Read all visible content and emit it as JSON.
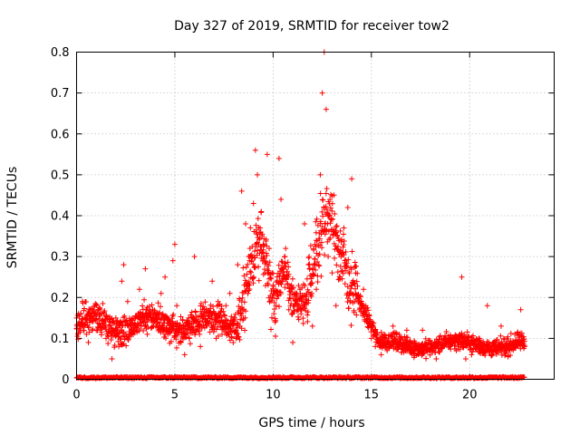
{
  "chart_data": {
    "type": "scatter",
    "title": "Day 327 of 2019, SRMTID for receiver tow2",
    "xlabel": "GPS time / hours",
    "ylabel": "SRMTID / TECUs",
    "xlim": [
      0,
      24.3
    ],
    "ylim": [
      0,
      0.8
    ],
    "xticks": [
      0,
      5,
      10,
      15,
      20
    ],
    "xtick_labels": [
      "0",
      "5",
      "10",
      "15",
      "20"
    ],
    "yticks": [
      0,
      0.1,
      0.2,
      0.3,
      0.4,
      0.5,
      0.6,
      0.7,
      0.8
    ],
    "ytick_labels": [
      "0",
      "0.1",
      "0.2",
      "0.3",
      "0.4",
      "0.5",
      "0.6",
      "0.7",
      "0.8"
    ],
    "grid": true,
    "marker": "plus",
    "color": "#ff0000",
    "x_range_data": [
      0,
      22.8
    ],
    "profile_description_hours": "baseline near 0 to 0.01 across full range; main cluster ~0.1-0.2 until 8h; rise to 0.3-0.55 around 8-10h; second peak up to 0.8 near 12.5-13h; decline after 14h to ~0.05-0.12; isolated point 0.25 at 19.6h",
    "series": [
      {
        "name": "SRMTID",
        "sample_points": [
          {
            "x": 0.0,
            "y": 0.15
          },
          {
            "x": 0.1,
            "y": 0.16
          },
          {
            "x": 0.2,
            "y": 0.13
          },
          {
            "x": 0.3,
            "y": 0.19
          },
          {
            "x": 0.5,
            "y": 0.11
          },
          {
            "x": 0.6,
            "y": 0.09
          },
          {
            "x": 0.8,
            "y": 0.17
          },
          {
            "x": 1.0,
            "y": 0.12
          },
          {
            "x": 1.2,
            "y": 0.13
          },
          {
            "x": 1.5,
            "y": 0.1
          },
          {
            "x": 1.7,
            "y": 0.14
          },
          {
            "x": 1.8,
            "y": 0.05
          },
          {
            "x": 2.0,
            "y": 0.15
          },
          {
            "x": 2.2,
            "y": 0.13
          },
          {
            "x": 2.3,
            "y": 0.24
          },
          {
            "x": 2.4,
            "y": 0.28
          },
          {
            "x": 2.6,
            "y": 0.19
          },
          {
            "x": 2.8,
            "y": 0.12
          },
          {
            "x": 3.0,
            "y": 0.15
          },
          {
            "x": 3.2,
            "y": 0.22
          },
          {
            "x": 3.5,
            "y": 0.27
          },
          {
            "x": 3.6,
            "y": 0.11
          },
          {
            "x": 3.9,
            "y": 0.15
          },
          {
            "x": 4.1,
            "y": 0.14
          },
          {
            "x": 4.3,
            "y": 0.21
          },
          {
            "x": 4.5,
            "y": 0.25
          },
          {
            "x": 4.7,
            "y": 0.12
          },
          {
            "x": 4.9,
            "y": 0.29
          },
          {
            "x": 5.0,
            "y": 0.33
          },
          {
            "x": 5.1,
            "y": 0.18
          },
          {
            "x": 5.3,
            "y": 0.09
          },
          {
            "x": 5.5,
            "y": 0.06
          },
          {
            "x": 5.7,
            "y": 0.15
          },
          {
            "x": 6.0,
            "y": 0.3
          },
          {
            "x": 6.1,
            "y": 0.12
          },
          {
            "x": 6.3,
            "y": 0.08
          },
          {
            "x": 6.6,
            "y": 0.13
          },
          {
            "x": 6.9,
            "y": 0.24
          },
          {
            "x": 7.1,
            "y": 0.1
          },
          {
            "x": 7.4,
            "y": 0.11
          },
          {
            "x": 7.6,
            "y": 0.18
          },
          {
            "x": 7.8,
            "y": 0.21
          },
          {
            "x": 8.0,
            "y": 0.12
          },
          {
            "x": 8.2,
            "y": 0.28
          },
          {
            "x": 8.4,
            "y": 0.46
          },
          {
            "x": 8.6,
            "y": 0.38
          },
          {
            "x": 8.8,
            "y": 0.29
          },
          {
            "x": 9.0,
            "y": 0.43
          },
          {
            "x": 9.1,
            "y": 0.56
          },
          {
            "x": 9.2,
            "y": 0.5
          },
          {
            "x": 9.4,
            "y": 0.41
          },
          {
            "x": 9.5,
            "y": 0.33
          },
          {
            "x": 9.7,
            "y": 0.55
          },
          {
            "x": 9.8,
            "y": 0.32
          },
          {
            "x": 10.0,
            "y": 0.21
          },
          {
            "x": 10.1,
            "y": 0.14
          },
          {
            "x": 10.3,
            "y": 0.54
          },
          {
            "x": 10.4,
            "y": 0.44
          },
          {
            "x": 10.6,
            "y": 0.3
          },
          {
            "x": 10.8,
            "y": 0.17
          },
          {
            "x": 11.0,
            "y": 0.09
          },
          {
            "x": 11.2,
            "y": 0.21
          },
          {
            "x": 11.4,
            "y": 0.17
          },
          {
            "x": 11.6,
            "y": 0.38
          },
          {
            "x": 11.8,
            "y": 0.28
          },
          {
            "x": 12.0,
            "y": 0.13
          },
          {
            "x": 12.2,
            "y": 0.22
          },
          {
            "x": 12.4,
            "y": 0.5
          },
          {
            "x": 12.5,
            "y": 0.7
          },
          {
            "x": 12.6,
            "y": 0.8
          },
          {
            "x": 12.7,
            "y": 0.66
          },
          {
            "x": 12.8,
            "y": 0.3
          },
          {
            "x": 13.0,
            "y": 0.26
          },
          {
            "x": 13.2,
            "y": 0.18
          },
          {
            "x": 13.4,
            "y": 0.25
          },
          {
            "x": 13.6,
            "y": 0.37
          },
          {
            "x": 13.8,
            "y": 0.42
          },
          {
            "x": 14.0,
            "y": 0.49
          },
          {
            "x": 14.2,
            "y": 0.21
          },
          {
            "x": 14.4,
            "y": 0.17
          },
          {
            "x": 14.6,
            "y": 0.22
          },
          {
            "x": 14.8,
            "y": 0.14
          },
          {
            "x": 15.0,
            "y": 0.1
          },
          {
            "x": 15.2,
            "y": 0.08
          },
          {
            "x": 15.5,
            "y": 0.06
          },
          {
            "x": 15.8,
            "y": 0.07
          },
          {
            "x": 16.1,
            "y": 0.13
          },
          {
            "x": 16.4,
            "y": 0.08
          },
          {
            "x": 16.8,
            "y": 0.12
          },
          {
            "x": 17.2,
            "y": 0.09
          },
          {
            "x": 17.6,
            "y": 0.12
          },
          {
            "x": 18.0,
            "y": 0.07
          },
          {
            "x": 18.3,
            "y": 0.05
          },
          {
            "x": 18.7,
            "y": 0.1
          },
          {
            "x": 19.0,
            "y": 0.08
          },
          {
            "x": 19.4,
            "y": 0.09
          },
          {
            "x": 19.6,
            "y": 0.25
          },
          {
            "x": 19.8,
            "y": 0.05
          },
          {
            "x": 20.1,
            "y": 0.06
          },
          {
            "x": 20.5,
            "y": 0.1
          },
          {
            "x": 20.9,
            "y": 0.18
          },
          {
            "x": 21.2,
            "y": 0.09
          },
          {
            "x": 21.6,
            "y": 0.13
          },
          {
            "x": 21.9,
            "y": 0.07
          },
          {
            "x": 22.3,
            "y": 0.11
          },
          {
            "x": 22.6,
            "y": 0.17
          },
          {
            "x": 22.8,
            "y": 0.08
          }
        ]
      }
    ]
  }
}
